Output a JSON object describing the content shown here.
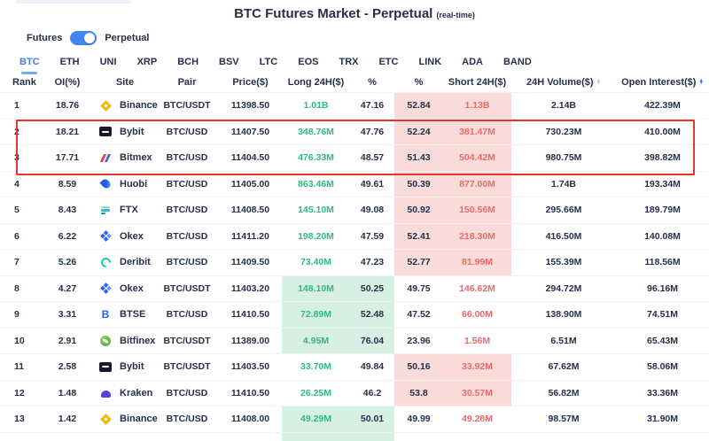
{
  "page": {
    "title": "BTC Futures Market - Perpetual",
    "title_suffix": "(real-time)"
  },
  "controls": {
    "toggle_left_label": "Futures",
    "toggle_right_label": "Perpetual",
    "toggle_state": "on"
  },
  "tabs": [
    {
      "label": "BTC",
      "active": true
    },
    {
      "label": "ETH",
      "active": false
    },
    {
      "label": "UNI",
      "active": false
    },
    {
      "label": "XRP",
      "active": false
    },
    {
      "label": "BCH",
      "active": false
    },
    {
      "label": "BSV",
      "active": false
    },
    {
      "label": "LTC",
      "active": false
    },
    {
      "label": "EOS",
      "active": false
    },
    {
      "label": "TRX",
      "active": false
    },
    {
      "label": "ETC",
      "active": false
    },
    {
      "label": "LINK",
      "active": false
    },
    {
      "label": "ADA",
      "active": false
    },
    {
      "label": "BAND",
      "active": false
    }
  ],
  "table": {
    "columns": [
      {
        "key": "rank",
        "label": "Rank",
        "sort_icon": "none"
      },
      {
        "key": "oi_pct",
        "label": "OI(%)",
        "sort_icon": "none"
      },
      {
        "key": "site",
        "label": "Site",
        "sort_icon": "none"
      },
      {
        "key": "pair",
        "label": "Pair",
        "sort_icon": "none"
      },
      {
        "key": "price",
        "label": "Price($)",
        "sort_icon": "none"
      },
      {
        "key": "long",
        "label": "Long 24H($)",
        "sort_icon": "none"
      },
      {
        "key": "long_pct",
        "label": "%",
        "sort_icon": "none"
      },
      {
        "key": "short_pct",
        "label": "%",
        "sort_icon": "none"
      },
      {
        "key": "short",
        "label": "Short 24H($)",
        "sort_icon": "none"
      },
      {
        "key": "volume",
        "label": "24H Volume($)",
        "sort_icon": "inactive"
      },
      {
        "key": "open_interest",
        "label": "Open Interest($)",
        "sort_icon": "active"
      }
    ],
    "rows": [
      {
        "rank": "1",
        "oi_pct": "18.76",
        "site": "Binance",
        "icon": "binance-icon",
        "pair": "BTC/USDT",
        "price": "11398.50",
        "long": "1.01B",
        "long_pct": "47.16",
        "short_pct": "52.84",
        "short": "1.13B",
        "volume": "2.14B",
        "open_interest": "422.39M",
        "highlight": "short"
      },
      {
        "rank": "2",
        "oi_pct": "18.21",
        "site": "Bybit",
        "icon": "bybit-icon",
        "pair": "BTC/USD",
        "price": "11407.50",
        "long": "348.76M",
        "long_pct": "47.76",
        "short_pct": "52.24",
        "short": "381.47M",
        "volume": "730.23M",
        "open_interest": "410.00M",
        "highlight": "short"
      },
      {
        "rank": "3",
        "oi_pct": "17.71",
        "site": "Bitmex",
        "icon": "bitmex-icon",
        "pair": "BTC/USD",
        "price": "11404.50",
        "long": "476.33M",
        "long_pct": "48.57",
        "short_pct": "51.43",
        "short": "504.42M",
        "volume": "980.75M",
        "open_interest": "398.82M",
        "highlight": "short"
      },
      {
        "rank": "4",
        "oi_pct": "8.59",
        "site": "Huobi",
        "icon": "huobi-icon",
        "pair": "BTC/USD",
        "price": "11405.00",
        "long": "863.46M",
        "long_pct": "49.61",
        "short_pct": "50.39",
        "short": "877.00M",
        "volume": "1.74B",
        "open_interest": "193.34M",
        "highlight": "short"
      },
      {
        "rank": "5",
        "oi_pct": "8.43",
        "site": "FTX",
        "icon": "ftx-icon",
        "pair": "BTC/USD",
        "price": "11408.50",
        "long": "145.10M",
        "long_pct": "49.08",
        "short_pct": "50.92",
        "short": "150.56M",
        "volume": "295.66M",
        "open_interest": "189.79M",
        "highlight": "short"
      },
      {
        "rank": "6",
        "oi_pct": "6.22",
        "site": "Okex",
        "icon": "okex-icon",
        "pair": "BTC/USD",
        "price": "11411.20",
        "long": "198.20M",
        "long_pct": "47.59",
        "short_pct": "52.41",
        "short": "218.30M",
        "volume": "416.50M",
        "open_interest": "140.08M",
        "highlight": "short"
      },
      {
        "rank": "7",
        "oi_pct": "5.26",
        "site": "Deribit",
        "icon": "deribit-icon",
        "pair": "BTC/USD",
        "price": "11409.50",
        "long": "73.40M",
        "long_pct": "47.23",
        "short_pct": "52.77",
        "short": "81.99M",
        "volume": "155.39M",
        "open_interest": "118.56M",
        "highlight": "short"
      },
      {
        "rank": "8",
        "oi_pct": "4.27",
        "site": "Okex",
        "icon": "okex-icon",
        "pair": "BTC/USDT",
        "price": "11403.20",
        "long": "148.10M",
        "long_pct": "50.25",
        "short_pct": "49.75",
        "short": "146.62M",
        "volume": "294.72M",
        "open_interest": "96.16M",
        "highlight": "long"
      },
      {
        "rank": "9",
        "oi_pct": "3.31",
        "site": "BTSE",
        "icon": "btse-icon",
        "pair": "BTC/USD",
        "price": "11410.50",
        "long": "72.89M",
        "long_pct": "52.48",
        "short_pct": "47.52",
        "short": "66.00M",
        "volume": "138.90M",
        "open_interest": "74.51M",
        "highlight": "long"
      },
      {
        "rank": "10",
        "oi_pct": "2.91",
        "site": "Bitfinex",
        "icon": "bitfinex-icon",
        "pair": "BTC/USDT",
        "price": "11389.00",
        "long": "4.95M",
        "long_pct": "76.04",
        "short_pct": "23.96",
        "short": "1.56M",
        "volume": "6.51M",
        "open_interest": "65.43M",
        "highlight": "long"
      },
      {
        "rank": "11",
        "oi_pct": "2.58",
        "site": "Bybit",
        "icon": "bybit-icon",
        "pair": "BTC/USDT",
        "price": "11403.50",
        "long": "33.70M",
        "long_pct": "49.84",
        "short_pct": "50.16",
        "short": "33.92M",
        "volume": "67.62M",
        "open_interest": "58.06M",
        "highlight": "short"
      },
      {
        "rank": "12",
        "oi_pct": "1.48",
        "site": "Kraken",
        "icon": "kraken-icon",
        "pair": "BTC/USD",
        "price": "11410.50",
        "long": "26.25M",
        "long_pct": "46.2",
        "short_pct": "53.8",
        "short": "30.57M",
        "volume": "56.82M",
        "open_interest": "33.36M",
        "highlight": "short"
      },
      {
        "rank": "13",
        "oi_pct": "1.42",
        "site": "Binance",
        "icon": "binance-icon",
        "pair": "BTC/USD",
        "price": "11408.00",
        "long": "49.29M",
        "long_pct": "50.01",
        "short_pct": "49.99",
        "short": "49.28M",
        "volume": "98.57M",
        "open_interest": "31.90M",
        "highlight": "long"
      }
    ],
    "partial_next_row_visible": true
  },
  "annotation": {
    "type": "red-box",
    "highlighted_ranks": "2-3",
    "color": "#e3342e"
  },
  "colors": {
    "accent_blue": "#3d7ef7",
    "text_navy": "#25304a",
    "long_green_text": "#2fba82",
    "short_red_text": "#ea6a6a",
    "long_green_bg": "#d8f0e3",
    "short_red_bg": "#f9dcd9",
    "binance": "#f0b90b",
    "bybit": "#15192a",
    "bitmex_red": "#e0424f",
    "bitmex_blue": "#5064d2",
    "huobi": "#2656f0",
    "ftx": "#3cb9d6",
    "okex": "#2764f4",
    "deribit": "#19ccb4",
    "btse": "#1f63f0",
    "bitfinex": "#4daa44",
    "kraken": "#5741d9"
  }
}
